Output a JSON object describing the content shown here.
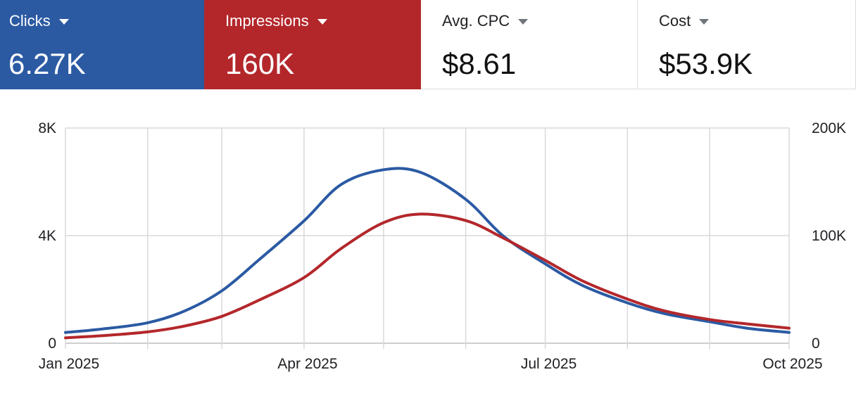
{
  "metrics": [
    {
      "label": "Clicks",
      "value": "6.27K",
      "color": "#2b5aa3"
    },
    {
      "label": "Impressions",
      "value": "160K",
      "color": "#b3272b"
    },
    {
      "label": "Avg. CPC",
      "value": "$8.61"
    },
    {
      "label": "Cost",
      "value": "$53.9K"
    }
  ],
  "chart_data": {
    "type": "line",
    "x": [
      "2025-01-01",
      "2025-01-15",
      "2025-02-01",
      "2025-02-15",
      "2025-03-01",
      "2025-03-15",
      "2025-04-01",
      "2025-04-15",
      "2025-05-01",
      "2025-05-15",
      "2025-06-01",
      "2025-06-15",
      "2025-07-01",
      "2025-07-15",
      "2025-08-01",
      "2025-08-15",
      "2025-09-01",
      "2025-09-15",
      "2025-10-01"
    ],
    "x_ticks": [
      "Jan 2025",
      "Apr 2025",
      "Jul 2025",
      "Oct 2025"
    ],
    "x_tick_dates": [
      "2025-01-01",
      "2025-04-01",
      "2025-07-01",
      "2025-10-01"
    ],
    "x_range": [
      "2025-01-01",
      "2025-10-01"
    ],
    "left_axis": {
      "ticks": [
        "0",
        "4K",
        "8K"
      ],
      "range": [
        0,
        8000
      ]
    },
    "right_axis": {
      "ticks": [
        "0",
        "100K",
        "200K"
      ],
      "range": [
        0,
        200000
      ]
    },
    "series": [
      {
        "name": "Clicks",
        "axis": "left",
        "color": "#2b5aa3",
        "values": [
          400,
          530,
          760,
          1200,
          1950,
          3100,
          4550,
          5900,
          6450,
          6350,
          5350,
          4000,
          2950,
          2150,
          1500,
          1100,
          800,
          560,
          400
        ]
      },
      {
        "name": "Impressions",
        "axis": "right",
        "color": "#b3272b",
        "values": [
          5000,
          7000,
          10500,
          16000,
          25000,
          40000,
          61000,
          88000,
          112000,
          120000,
          114000,
          98000,
          77000,
          58000,
          41000,
          30000,
          22000,
          18000,
          14000
        ]
      }
    ],
    "grid": true,
    "legend": "none"
  }
}
